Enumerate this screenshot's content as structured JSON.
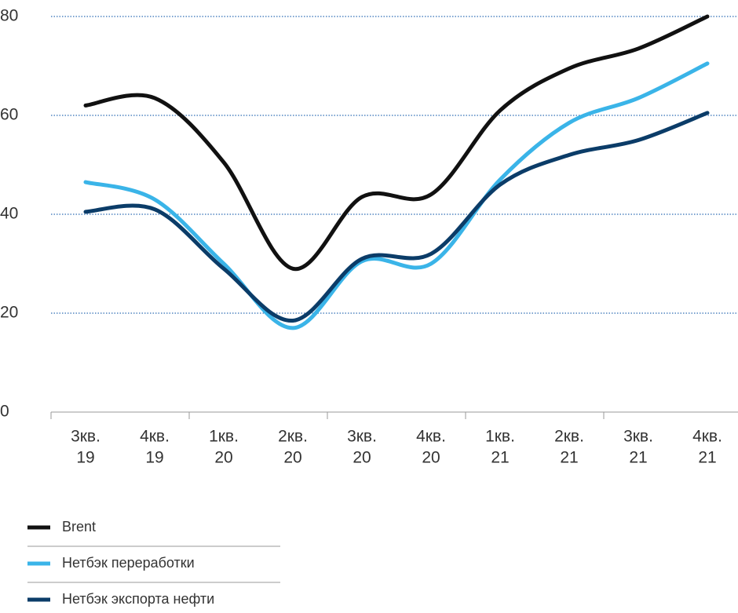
{
  "chart_data": {
    "type": "line",
    "categories": [
      [
        "3кв.",
        "19"
      ],
      [
        "4кв.",
        "19"
      ],
      [
        "1кв.",
        "20"
      ],
      [
        "2кв.",
        "20"
      ],
      [
        "3кв.",
        "20"
      ],
      [
        "4кв.",
        "20"
      ],
      [
        "1кв.",
        "21"
      ],
      [
        "2кв.",
        "21"
      ],
      [
        "3кв.",
        "21"
      ],
      [
        "4кв.",
        "21"
      ]
    ],
    "series": [
      {
        "name": "Brent",
        "color": "#111111",
        "values": [
          62,
          63.5,
          50.5,
          29,
          43.5,
          44,
          61,
          69.5,
          73.5,
          80
        ]
      },
      {
        "name": "Нетбэк переработки",
        "color": "#3ab4e8",
        "values": [
          46.5,
          43,
          30,
          17,
          30.5,
          30,
          47,
          58.5,
          63.5,
          70.5
        ]
      },
      {
        "name": "Нетбэк экспорта нефти",
        "color": "#0b3c68",
        "values": [
          40.5,
          41,
          29,
          18.5,
          31,
          32,
          46,
          52,
          55,
          60.5
        ]
      }
    ],
    "ylim": [
      0,
      80
    ],
    "yticks": [
      0,
      20,
      40,
      60,
      80
    ],
    "grid": true
  }
}
